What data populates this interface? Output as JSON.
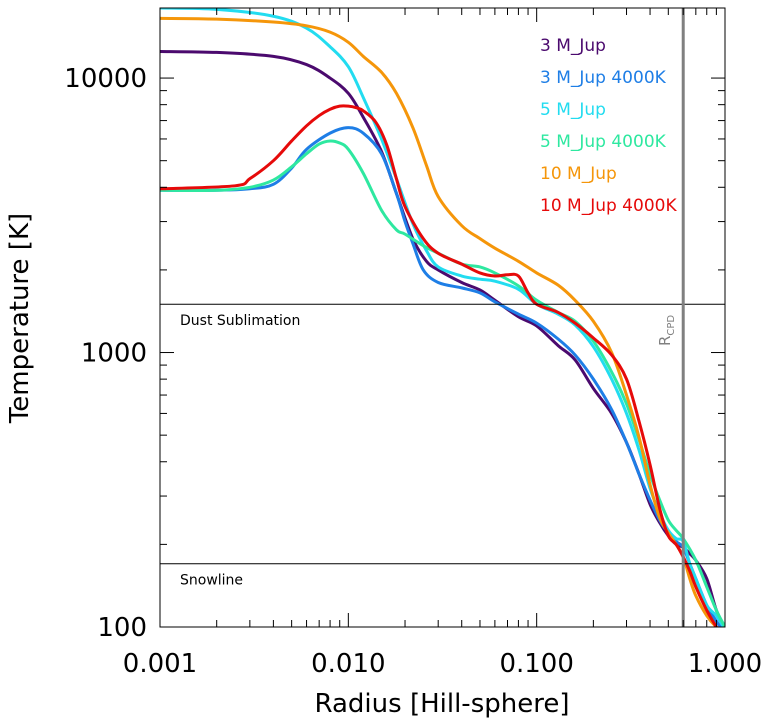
{
  "chart_data": {
    "type": "line",
    "xlabel": "Radius [Hill-sphere]",
    "ylabel": "Temperature [K]",
    "xscale": "log",
    "yscale": "log",
    "xlim": [
      0.001,
      1.0
    ],
    "ylim": [
      100,
      18000
    ],
    "xticks": [
      {
        "value": 0.001,
        "label": "0.001"
      },
      {
        "value": 0.01,
        "label": "0.010"
      },
      {
        "value": 0.1,
        "label": "0.100"
      },
      {
        "value": 1.0,
        "label": "1.000"
      }
    ],
    "yticks": [
      {
        "value": 100,
        "label": "100"
      },
      {
        "value": 1000,
        "label": "1000"
      },
      {
        "value": 10000,
        "label": "10000"
      }
    ],
    "legend_position": "top-right",
    "hlines": [
      {
        "name": "dust-sublimation-line",
        "y": 1500,
        "label": "Dust Sublimation"
      },
      {
        "name": "snowline",
        "y": 170,
        "label": "Snowline"
      }
    ],
    "vline": {
      "x": 0.6,
      "label": "R",
      "subscript": "CPD",
      "color": "#808080"
    },
    "series": [
      {
        "name": "3 M_Jup",
        "color": "#4b0a6e",
        "x": [
          0.001,
          0.002,
          0.004,
          0.006,
          0.008,
          0.01,
          0.012,
          0.015,
          0.018,
          0.022,
          0.026,
          0.03,
          0.04,
          0.05,
          0.06,
          0.08,
          0.1,
          0.13,
          0.16,
          0.2,
          0.25,
          0.3,
          0.35,
          0.4,
          0.45,
          0.5,
          0.55,
          0.6,
          0.65,
          0.7,
          0.8,
          0.9,
          1.0
        ],
        "values": [
          12500,
          12400,
          12000,
          11200,
          10000,
          8800,
          7200,
          5400,
          3800,
          2600,
          2150,
          2000,
          1800,
          1690,
          1550,
          1350,
          1250,
          1060,
          940,
          740,
          600,
          470,
          360,
          280,
          240,
          215,
          200,
          195,
          185,
          175,
          150,
          115,
          100
        ]
      },
      {
        "name": "3 M_Jup 4000K",
        "color": "#1e7ee6",
        "x": [
          0.001,
          0.002,
          0.003,
          0.004,
          0.005,
          0.006,
          0.008,
          0.01,
          0.012,
          0.015,
          0.018,
          0.02,
          0.022,
          0.025,
          0.03,
          0.04,
          0.05,
          0.06,
          0.08,
          0.1,
          0.13,
          0.16,
          0.2,
          0.25,
          0.3,
          0.35,
          0.4,
          0.45,
          0.5,
          0.55,
          0.6,
          0.65,
          0.7,
          0.8,
          0.9,
          1.0
        ],
        "values": [
          3900,
          3900,
          3950,
          4100,
          4700,
          5500,
          6300,
          6600,
          6300,
          5300,
          3800,
          3000,
          2500,
          2000,
          1800,
          1720,
          1650,
          1530,
          1380,
          1280,
          1120,
          980,
          800,
          620,
          470,
          360,
          290,
          245,
          220,
          205,
          195,
          170,
          150,
          120,
          105,
          95
        ]
      },
      {
        "name": "5 M_Jup",
        "color": "#22dcf0",
        "x": [
          0.001,
          0.002,
          0.004,
          0.006,
          0.008,
          0.01,
          0.012,
          0.015,
          0.018,
          0.022,
          0.026,
          0.03,
          0.04,
          0.05,
          0.06,
          0.08,
          0.1,
          0.13,
          0.16,
          0.2,
          0.25,
          0.3,
          0.35,
          0.4,
          0.45,
          0.5,
          0.55,
          0.6,
          0.65,
          0.7,
          0.8,
          0.9,
          1.0
        ],
        "values": [
          18000,
          17800,
          16800,
          15200,
          13000,
          11000,
          8500,
          6000,
          4300,
          2950,
          2350,
          2050,
          1900,
          1850,
          1820,
          1700,
          1500,
          1380,
          1260,
          1050,
          800,
          600,
          440,
          320,
          260,
          225,
          210,
          205,
          170,
          150,
          120,
          110,
          98
        ]
      },
      {
        "name": "5 M_Jup 4000K",
        "color": "#2ee8a0",
        "x": [
          0.001,
          0.002,
          0.003,
          0.004,
          0.005,
          0.006,
          0.007,
          0.008,
          0.009,
          0.01,
          0.012,
          0.015,
          0.018,
          0.02,
          0.025,
          0.03,
          0.04,
          0.05,
          0.06,
          0.08,
          0.1,
          0.13,
          0.16,
          0.2,
          0.25,
          0.3,
          0.35,
          0.4,
          0.45,
          0.5,
          0.55,
          0.6,
          0.7,
          0.8,
          0.9,
          1.0
        ],
        "values": [
          3900,
          3900,
          4000,
          4250,
          4750,
          5300,
          5750,
          5900,
          5800,
          5500,
          4500,
          3300,
          2800,
          2700,
          2450,
          2300,
          2100,
          2050,
          1950,
          1750,
          1550,
          1400,
          1300,
          1100,
          850,
          650,
          480,
          360,
          290,
          245,
          225,
          210,
          175,
          140,
          115,
          100
        ]
      },
      {
        "name": "10 M_Jup",
        "color": "#f5960a",
        "x": [
          0.001,
          0.002,
          0.004,
          0.006,
          0.008,
          0.01,
          0.012,
          0.015,
          0.018,
          0.022,
          0.026,
          0.03,
          0.04,
          0.05,
          0.06,
          0.08,
          0.1,
          0.13,
          0.16,
          0.2,
          0.25,
          0.3,
          0.35,
          0.4,
          0.45,
          0.5,
          0.55,
          0.6,
          0.65,
          0.7,
          0.8,
          0.9,
          1.0
        ],
        "values": [
          16500,
          16400,
          16000,
          15500,
          14700,
          13500,
          12000,
          10500,
          8800,
          6600,
          4800,
          3700,
          2900,
          2600,
          2400,
          2150,
          1950,
          1760,
          1550,
          1300,
          1000,
          700,
          490,
          330,
          250,
          220,
          200,
          180,
          150,
          130,
          110,
          100,
          95
        ]
      },
      {
        "name": "10 M_Jup 4000K",
        "color": "#e60a0a",
        "x": [
          0.001,
          0.0025,
          0.003,
          0.004,
          0.005,
          0.006,
          0.007,
          0.008,
          0.009,
          0.01,
          0.011,
          0.012,
          0.014,
          0.016,
          0.018,
          0.02,
          0.025,
          0.03,
          0.04,
          0.05,
          0.06,
          0.07,
          0.08,
          0.09,
          0.1,
          0.13,
          0.16,
          0.2,
          0.25,
          0.3,
          0.35,
          0.4,
          0.45,
          0.5,
          0.55,
          0.6,
          0.65,
          0.7,
          0.8,
          0.9,
          1.0
        ],
        "values": [
          3950,
          4050,
          4300,
          5000,
          5900,
          6700,
          7300,
          7700,
          7900,
          7900,
          7800,
          7600,
          6900,
          5700,
          4300,
          3400,
          2600,
          2300,
          2100,
          1950,
          1900,
          1920,
          1900,
          1650,
          1500,
          1400,
          1280,
          1130,
          980,
          800,
          560,
          390,
          270,
          215,
          200,
          180,
          160,
          140,
          115,
          100,
          90
        ]
      }
    ]
  }
}
